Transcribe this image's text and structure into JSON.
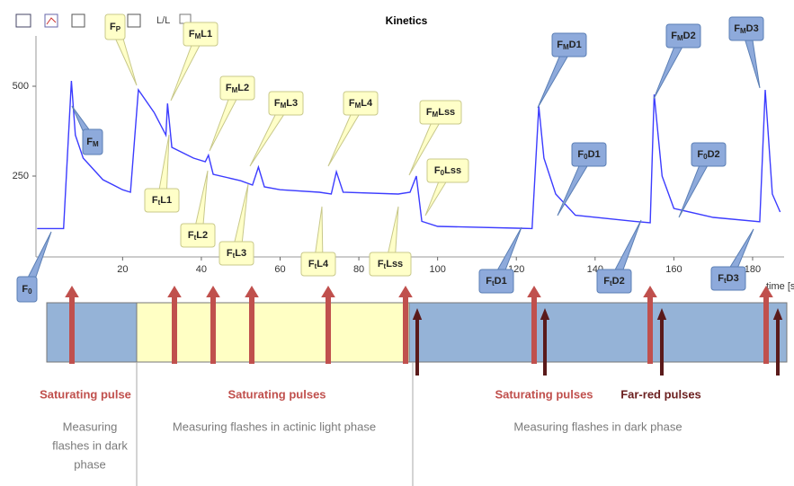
{
  "toolbar": {
    "text": "L/L"
  },
  "chart_data": {
    "type": "line",
    "title": "Kinetics",
    "x_label": "time [s",
    "xlim": [
      -2,
      188
    ],
    "ylim": [
      25,
      640
    ],
    "xticks": [
      20,
      40,
      60,
      80,
      100,
      120,
      140,
      160,
      180
    ],
    "yticks": [
      250,
      500
    ],
    "series": [
      {
        "name": "Kinetics",
        "color": "#3c3cff",
        "x": [
          -1.7,
          5,
          7,
          8,
          10,
          15,
          20,
          22,
          24,
          28,
          31,
          31.4,
          32.5,
          38,
          41,
          41.8,
          43,
          50,
          53,
          54.5,
          56,
          60,
          70,
          73,
          74.3,
          76,
          90,
          93,
          94.6,
          96,
          100,
          120,
          124,
          125.7,
          127,
          130,
          135,
          150,
          154,
          155,
          157,
          160,
          170,
          181.8,
          183.2,
          185,
          187
        ],
        "values": [
          104,
          104,
          515,
          364,
          300,
          240,
          212,
          205,
          490,
          427,
          364,
          452,
          330,
          300,
          290,
          308,
          255,
          237,
          225,
          275,
          220,
          212,
          205,
          200,
          262,
          205,
          200,
          205,
          250,
          124,
          110,
          105,
          104,
          444,
          300,
          200,
          141,
          124,
          120,
          477,
          250,
          160,
          135,
          123,
          490,
          200,
          150
        ]
      }
    ],
    "annotations": [
      {
        "base": "F",
        "sub": "0",
        "suffix": ""
      },
      {
        "base": "F",
        "sub": "M",
        "suffix": ""
      },
      {
        "base": "F",
        "sub": "P",
        "suffix": ""
      },
      {
        "base": "F",
        "sub": "M",
        "suffix": "L1"
      },
      {
        "base": "F",
        "sub": "M",
        "suffix": "L2"
      },
      {
        "base": "F",
        "sub": "M",
        "suffix": "L3"
      },
      {
        "base": "F",
        "sub": "M",
        "suffix": "L4"
      },
      {
        "base": "F",
        "sub": "M",
        "suffix": "Lss"
      },
      {
        "base": "F",
        "sub": "0",
        "suffix": "Lss"
      },
      {
        "base": "F",
        "sub": "t",
        "suffix": "L1"
      },
      {
        "base": "F",
        "sub": "t",
        "suffix": "L2"
      },
      {
        "base": "F",
        "sub": "t",
        "suffix": "L3"
      },
      {
        "base": "F",
        "sub": "t",
        "suffix": "L4"
      },
      {
        "base": "F",
        "sub": "t",
        "suffix": "Lss"
      },
      {
        "base": "F",
        "sub": "M",
        "suffix": "D1"
      },
      {
        "base": "F",
        "sub": "0",
        "suffix": "D1"
      },
      {
        "base": "F",
        "sub": "M",
        "suffix": "D2"
      },
      {
        "base": "F",
        "sub": "0",
        "suffix": "D2"
      },
      {
        "base": "F",
        "sub": "M",
        "suffix": "D3"
      },
      {
        "base": "F",
        "sub": "t",
        "suffix": "D1"
      },
      {
        "base": "F",
        "sub": "t",
        "suffix": "D2"
      },
      {
        "base": "F",
        "sub": "t",
        "suffix": "D3"
      }
    ]
  },
  "diagram": {
    "pulse_labels": [
      "Saturating pulse",
      "Saturating pulses",
      "Saturating pulses",
      "Far-red pulses"
    ],
    "phase_labels": [
      [
        "Measuring",
        "flashes in dark",
        "phase"
      ],
      [
        "Measuring flashes in actinic light phase"
      ],
      [
        "Measuring flashes in dark phase"
      ]
    ]
  }
}
